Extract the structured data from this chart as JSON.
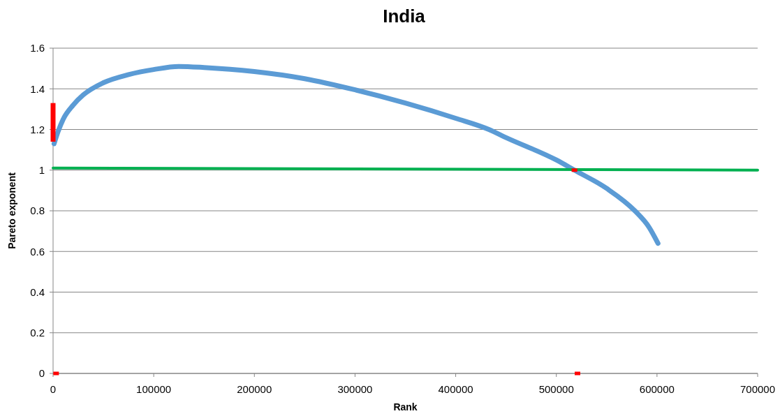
{
  "chart_data": {
    "type": "line",
    "title": "India",
    "xlabel": "Rank",
    "ylabel": "Pareto exponent",
    "xlim": [
      0,
      700000
    ],
    "xticks": [
      0,
      100000,
      200000,
      300000,
      400000,
      500000,
      600000,
      700000
    ],
    "ylim": [
      0,
      1.6
    ],
    "yticks": [
      0,
      0.2,
      0.4,
      0.6,
      0.8,
      1,
      1.2,
      1.4,
      1.6
    ],
    "grid": "y",
    "series": [
      {
        "color": "#5b9bd5",
        "x": [
          1000,
          5000,
          10000,
          20000,
          30000,
          50000,
          75000,
          100000,
          125000,
          150000,
          200000,
          250000,
          300000,
          350000,
          400000,
          433000,
          450000,
          500000,
          518000,
          550000,
          578000,
          592000,
          601000
        ],
        "values": [
          1.13,
          1.19,
          1.25,
          1.32,
          1.37,
          1.43,
          1.47,
          1.495,
          1.51,
          1.505,
          1.485,
          1.45,
          1.395,
          1.33,
          1.255,
          1.2,
          1.16,
          1.05,
          1.0,
          0.91,
          0.8,
          0.72,
          0.64
        ]
      },
      {
        "color": "#00b050",
        "x": [
          0,
          700000
        ],
        "values": [
          1.01,
          1.0
        ]
      },
      {
        "color": "#ff0000",
        "x": [
          0,
          0
        ],
        "values": [
          1.14,
          1.33
        ]
      },
      {
        "type": "scatter",
        "marker": "square",
        "color": "#ff0000",
        "x": [
          3000,
          518000,
          521000
        ],
        "values": [
          0,
          1.0,
          0
        ]
      }
    ]
  }
}
